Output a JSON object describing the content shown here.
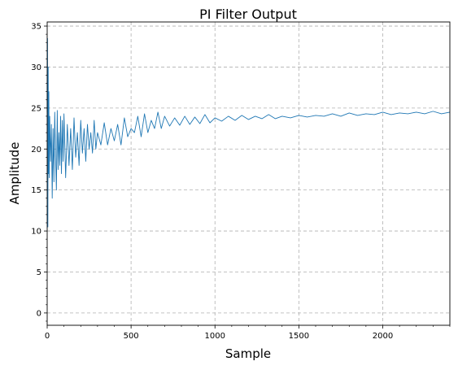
{
  "chart_data": {
    "type": "line",
    "title": "PI Filter Output",
    "xlabel": "Sample",
    "ylabel": "Amplitude",
    "xlim": [
      0,
      2400
    ],
    "ylim": [
      -1.5,
      35.5
    ],
    "x_ticks": [
      0,
      500,
      1000,
      1500,
      2000
    ],
    "y_ticks": [
      0,
      5,
      10,
      15,
      20,
      25,
      30,
      35
    ],
    "grid": true,
    "grid_style": "dashed",
    "series": [
      {
        "color": "#1f77b4",
        "x": [
          0,
          2,
          4,
          6,
          8,
          10,
          12,
          15,
          20,
          25,
          30,
          35,
          40,
          45,
          50,
          55,
          60,
          65,
          70,
          75,
          80,
          85,
          90,
          95,
          100,
          110,
          120,
          130,
          140,
          150,
          160,
          170,
          180,
          190,
          200,
          210,
          220,
          230,
          240,
          250,
          260,
          270,
          280,
          290,
          300,
          320,
          340,
          360,
          380,
          400,
          420,
          440,
          460,
          480,
          500,
          520,
          540,
          560,
          580,
          600,
          620,
          640,
          660,
          680,
          700,
          730,
          760,
          790,
          820,
          850,
          880,
          910,
          940,
          970,
          1000,
          1040,
          1080,
          1120,
          1160,
          1200,
          1240,
          1280,
          1320,
          1360,
          1400,
          1450,
          1500,
          1550,
          1600,
          1650,
          1700,
          1750,
          1800,
          1850,
          1900,
          1950,
          2000,
          2050,
          2100,
          2150,
          2200,
          2250,
          2300,
          2350,
          2400
        ],
        "values": [
          24.5,
          33.5,
          10.5,
          30.0,
          17.0,
          27.0,
          16.5,
          24.0,
          18.5,
          23.0,
          14.0,
          22.5,
          16.0,
          24.5,
          19.0,
          15.0,
          24.7,
          17.5,
          22.0,
          18.0,
          24.0,
          17.0,
          23.5,
          18.5,
          24.3,
          16.5,
          23.0,
          18.0,
          22.5,
          17.5,
          23.8,
          19.0,
          22.0,
          18.0,
          23.5,
          19.5,
          22.5,
          18.5,
          23.0,
          20.0,
          22.0,
          19.5,
          23.5,
          20.0,
          22.0,
          20.5,
          23.2,
          20.5,
          22.5,
          21.0,
          23.0,
          20.5,
          23.8,
          21.5,
          22.5,
          22.0,
          24.0,
          21.5,
          24.3,
          22.0,
          23.5,
          22.5,
          24.5,
          22.5,
          24.0,
          22.8,
          23.8,
          22.9,
          24.0,
          23.0,
          23.9,
          23.1,
          24.2,
          23.2,
          23.8,
          23.4,
          24.0,
          23.5,
          24.1,
          23.6,
          24.0,
          23.7,
          24.2,
          23.7,
          24.0,
          23.8,
          24.1,
          23.9,
          24.1,
          24.0,
          24.3,
          24.0,
          24.4,
          24.1,
          24.3,
          24.2,
          24.5,
          24.2,
          24.4,
          24.3,
          24.5,
          24.3,
          24.6,
          24.3,
          24.5
        ]
      }
    ]
  }
}
